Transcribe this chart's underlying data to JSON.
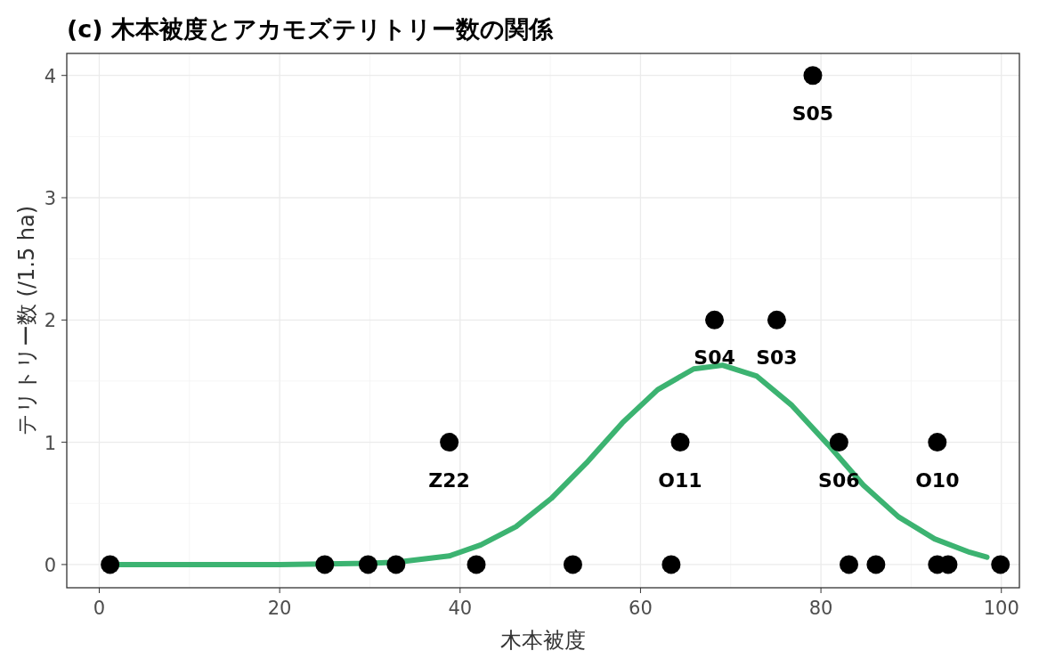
{
  "chart_data": {
    "type": "scatter",
    "title": "(c) 木本被度とアカモズテリトリー数の関係",
    "xlabel": "木本被度",
    "ylabel": "テリトリー数 (/1.5 ha)",
    "xlim": [
      -3.6,
      102
    ],
    "ylim": [
      -0.19,
      4.18
    ],
    "xticks": [
      0,
      20,
      40,
      60,
      80,
      100
    ],
    "yticks": [
      0,
      1,
      2,
      3,
      4
    ],
    "grid": true,
    "series": [
      {
        "marker": "circle",
        "color": "#000000",
        "x": [
          1.2,
          25.0,
          29.8,
          32.9,
          38.8,
          41.8,
          52.5,
          63.4,
          64.4,
          68.2,
          75.1,
          79.1,
          82.0,
          83.1,
          86.1,
          92.9,
          92.9,
          94.1,
          99.9
        ],
        "values": [
          0,
          0,
          0,
          0,
          1,
          0,
          0,
          0,
          1,
          2,
          2,
          4,
          1,
          0,
          0,
          1,
          0,
          0,
          0
        ]
      },
      {
        "type": "line",
        "color": "#3cb371",
        "x": [
          1.2,
          10,
          20,
          30,
          33,
          38.8,
          42.3,
          46.2,
          50.1,
          54,
          58,
          61.9,
          65.9,
          69.1,
          72.9,
          76.8,
          80.8,
          84.7,
          88.6,
          92.6,
          96.5,
          98.4
        ],
        "values": [
          0,
          0,
          0,
          0.01,
          0.02,
          0.07,
          0.16,
          0.31,
          0.54,
          0.83,
          1.16,
          1.43,
          1.6,
          1.63,
          1.54,
          1.3,
          0.98,
          0.65,
          0.39,
          0.21,
          0.1,
          0.06
        ]
      }
    ],
    "annotations": [
      {
        "text": "Z22",
        "x": 38.8,
        "y": 1
      },
      {
        "text": "O11",
        "x": 64.4,
        "y": 1
      },
      {
        "text": "S04",
        "x": 68.2,
        "y": 2
      },
      {
        "text": "S03",
        "x": 75.1,
        "y": 2
      },
      {
        "text": "S05",
        "x": 79.1,
        "y": 4
      },
      {
        "text": "S06",
        "x": 82.0,
        "y": 1
      },
      {
        "text": "O10",
        "x": 92.9,
        "y": 1
      }
    ]
  }
}
